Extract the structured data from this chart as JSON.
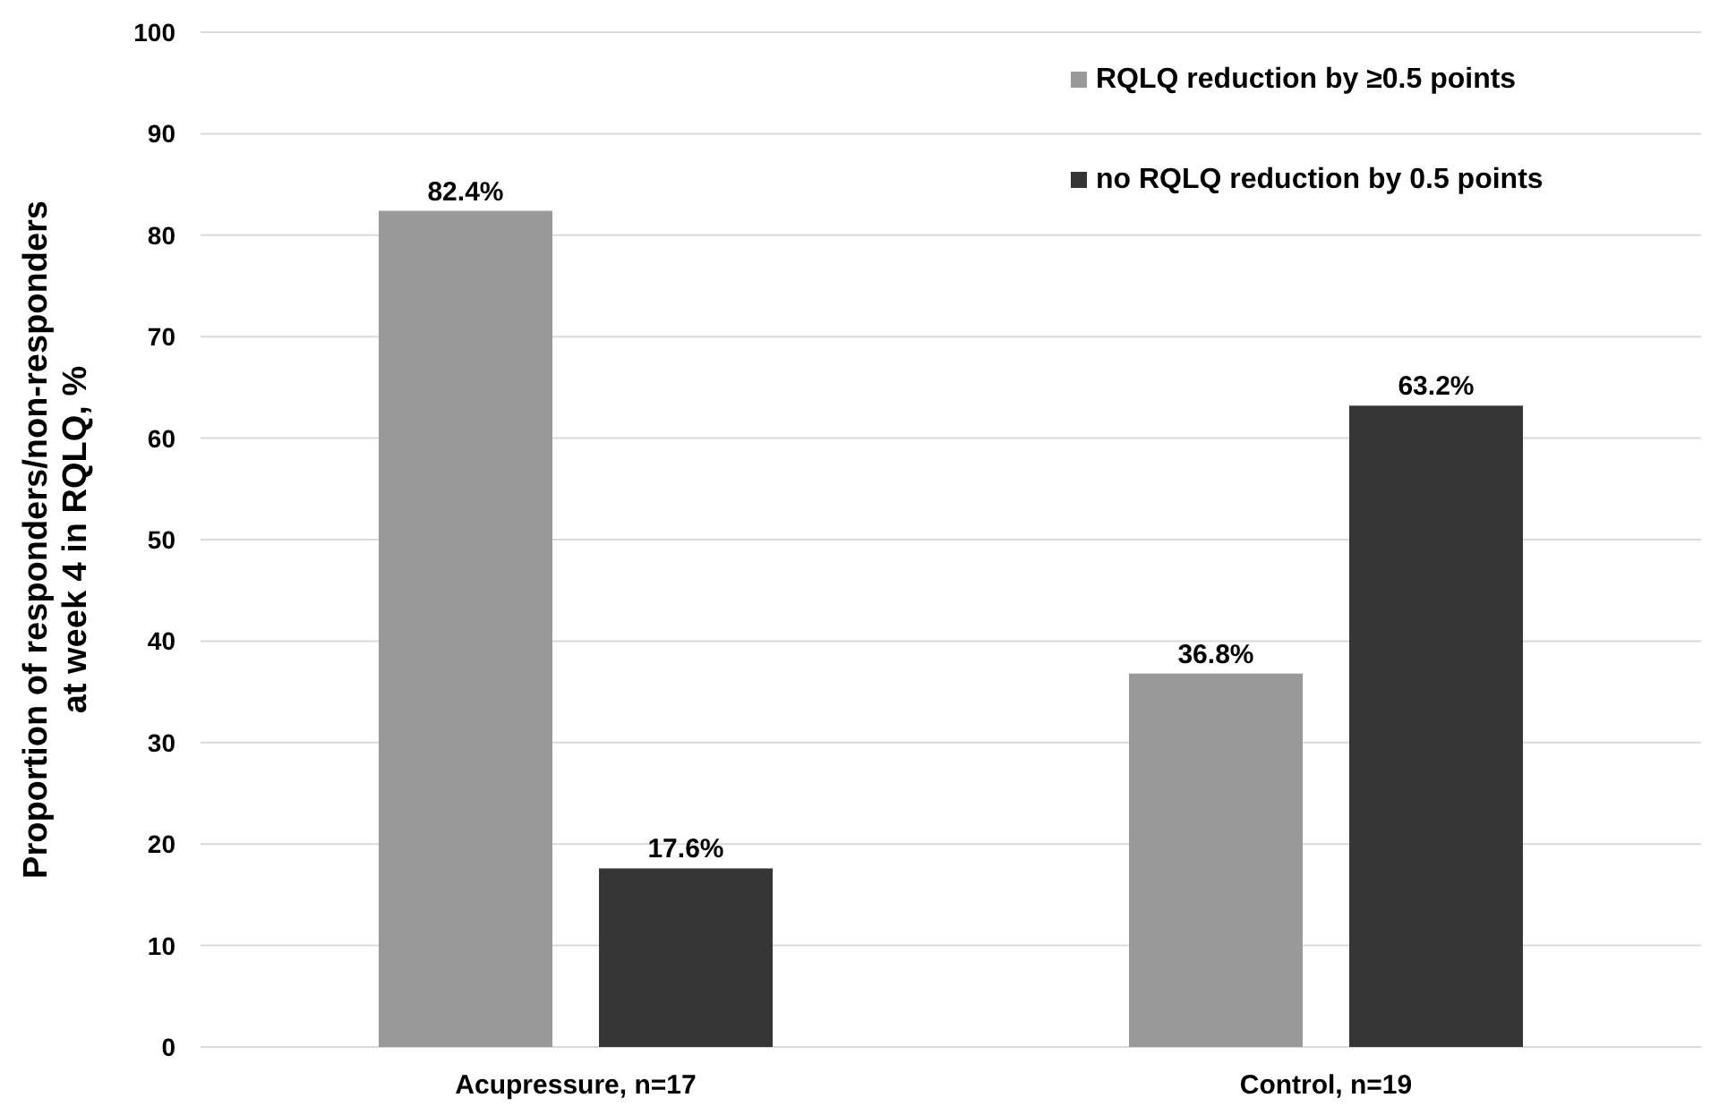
{
  "chart_data": {
    "type": "bar",
    "ylabel": "Proportion of responders/non-responders\nat week 4 in RQLQ, %",
    "categories": [
      "Acupressure, n=17",
      "Control, n=19"
    ],
    "series": [
      {
        "name": "RQLQ reduction by ≥0.5 points",
        "color": "#999999",
        "values": [
          82.4,
          36.8
        ],
        "value_labels": [
          "82.4%",
          "36.8%"
        ]
      },
      {
        "name": "no RQLQ reduction by 0.5 points",
        "color": "#363636",
        "values": [
          17.6,
          63.2
        ],
        "value_labels": [
          "17.6%",
          "63.2%"
        ]
      }
    ],
    "ylim": [
      0,
      100
    ],
    "yticks": [
      0,
      10,
      20,
      30,
      40,
      50,
      60,
      70,
      80,
      90,
      100
    ],
    "grid": "y",
    "legend": "top right"
  }
}
